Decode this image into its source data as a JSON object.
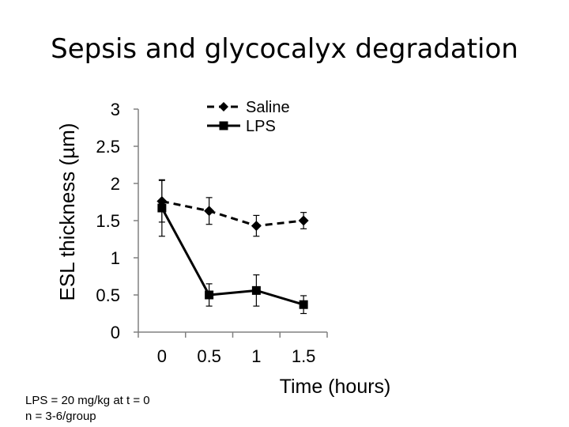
{
  "slide": {
    "title": "Sepsis and glycocalyx degradation",
    "footnotes": [
      "LPS = 20 mg/kg at t = 0",
      "n = 3-6/group"
    ]
  },
  "chart_data": {
    "type": "line",
    "title": "",
    "xlabel": "Time (hours)",
    "ylabel": "ESL thickness (µm)",
    "categories": [
      "0",
      "0.5",
      "1",
      "1.5"
    ],
    "yticks": [
      "0",
      "0.5",
      "1",
      "1.5",
      "2",
      "2.5",
      "3"
    ],
    "ylim": [
      0,
      3
    ],
    "grid": false,
    "legend_position": "top-right",
    "series": [
      {
        "name": "Saline",
        "style": "dashed",
        "marker": "diamond",
        "color": "#000000",
        "values": [
          1.76,
          1.63,
          1.43,
          1.5
        ],
        "errors": [
          0.28,
          0.18,
          0.14,
          0.11
        ]
      },
      {
        "name": "LPS",
        "style": "solid",
        "marker": "square",
        "color": "#000000",
        "values": [
          1.67,
          0.5,
          0.56,
          0.37
        ],
        "errors": [
          0.38,
          0.15,
          0.21,
          0.12
        ]
      }
    ]
  }
}
